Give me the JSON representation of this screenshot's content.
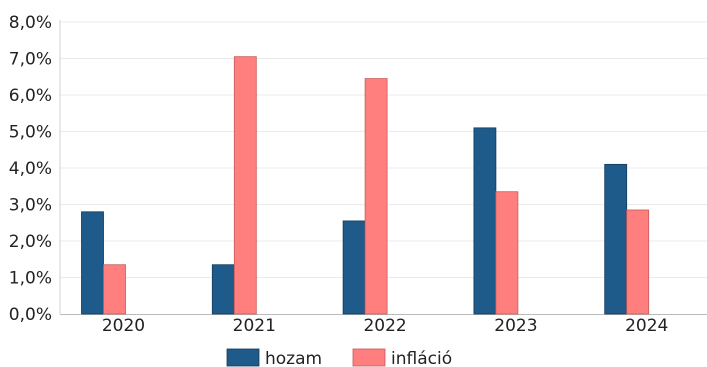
{
  "chart_data": {
    "type": "bar",
    "categories": [
      "2020",
      "2021",
      "2022",
      "2023",
      "2024"
    ],
    "series": [
      {
        "name": "hozam",
        "values": [
          2.8,
          1.35,
          2.55,
          5.1,
          4.1
        ],
        "color": "#1f5b8a"
      },
      {
        "name": "infláció",
        "values": [
          1.35,
          7.05,
          6.45,
          3.35,
          2.85
        ],
        "color": "#ff7f7f"
      }
    ],
    "y_ticks": [
      "0,0%",
      "1,0%",
      "2,0%",
      "3,0%",
      "4,0%",
      "5,0%",
      "6,0%",
      "7,0%",
      "8,0%"
    ],
    "ylim": [
      0,
      8
    ],
    "grid": true,
    "legend_position": "bottom-center",
    "title": "",
    "xlabel": "",
    "ylabel": ""
  }
}
